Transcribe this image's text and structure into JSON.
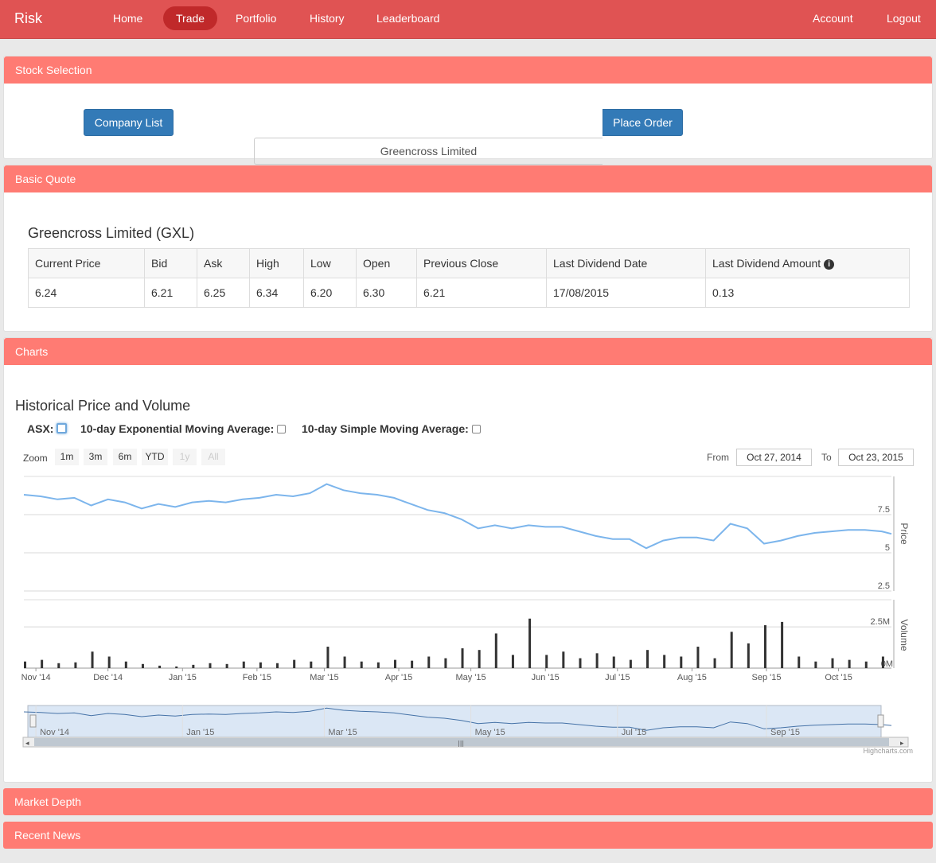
{
  "nav": {
    "brand": "Risk",
    "links": [
      "Home",
      "Trade",
      "Portfolio",
      "History",
      "Leaderboard"
    ],
    "right": [
      "Account",
      "Logout"
    ]
  },
  "stock_selection": {
    "heading": "Stock Selection",
    "company_list_label": "Company List",
    "company_value": "Greencross Limited",
    "place_order_label": "Place Order"
  },
  "basic_quote": {
    "heading": "Basic Quote",
    "title": "Greencross Limited (GXL)",
    "headers": [
      "Current Price",
      "Bid",
      "Ask",
      "High",
      "Low",
      "Open",
      "Previous Close",
      "Last Dividend Date",
      "Last Dividend Amount"
    ],
    "values": [
      "6.24",
      "6.21",
      "6.25",
      "6.34",
      "6.20",
      "6.30",
      "6.21",
      "17/08/2015",
      "0.13"
    ]
  },
  "charts": {
    "heading": "Charts",
    "title": "Historical Price and Volume",
    "options": [
      "ASX:",
      "10-day Exponential Moving Average:",
      "10-day Simple Moving Average:"
    ],
    "zoom_label": "Zoom",
    "zoom_buttons": [
      "1m",
      "3m",
      "6m",
      "YTD",
      "1y",
      "All"
    ],
    "from_label": "From",
    "from_value": "Oct 27, 2014",
    "to_label": "To",
    "to_value": "Oct 23, 2015",
    "credit": "Highcharts.com"
  },
  "chart_data": {
    "type": "line",
    "x_ticks": [
      "Nov '14",
      "Dec '14",
      "Jan '15",
      "Feb '15",
      "Mar '15",
      "Apr '15",
      "May '15",
      "Jun '15",
      "Jul '15",
      "Aug '15",
      "Sep '15",
      "Oct '15"
    ],
    "navigator_ticks": [
      "Nov '14",
      "Jan '15",
      "Mar '15",
      "May '15",
      "Jul '15",
      "Sep '15"
    ],
    "price_axis": {
      "label": "Price",
      "ticks": [
        "7.5",
        "5",
        "2.5"
      ],
      "ylim": [
        2.5,
        10
      ]
    },
    "volume_axis": {
      "label": "Volume",
      "ticks": [
        "2.5M",
        "0M"
      ],
      "ylim": [
        0,
        4000000
      ]
    },
    "price_series": [
      [
        "2014-10-27",
        8.8
      ],
      [
        "2014-11-03",
        8.7
      ],
      [
        "2014-11-10",
        8.5
      ],
      [
        "2014-11-17",
        8.6
      ],
      [
        "2014-11-24",
        8.1
      ],
      [
        "2014-12-01",
        8.5
      ],
      [
        "2014-12-08",
        8.3
      ],
      [
        "2014-12-15",
        7.9
      ],
      [
        "2014-12-22",
        8.2
      ],
      [
        "2014-12-29",
        8.0
      ],
      [
        "2015-01-05",
        8.3
      ],
      [
        "2015-01-12",
        8.4
      ],
      [
        "2015-01-19",
        8.3
      ],
      [
        "2015-01-26",
        8.5
      ],
      [
        "2015-02-02",
        8.6
      ],
      [
        "2015-02-09",
        8.8
      ],
      [
        "2015-02-16",
        8.7
      ],
      [
        "2015-02-23",
        8.9
      ],
      [
        "2015-03-02",
        9.5
      ],
      [
        "2015-03-09",
        9.1
      ],
      [
        "2015-03-16",
        8.9
      ],
      [
        "2015-03-23",
        8.8
      ],
      [
        "2015-03-30",
        8.6
      ],
      [
        "2015-04-06",
        8.2
      ],
      [
        "2015-04-13",
        7.8
      ],
      [
        "2015-04-20",
        7.6
      ],
      [
        "2015-04-27",
        7.2
      ],
      [
        "2015-05-04",
        6.6
      ],
      [
        "2015-05-11",
        6.8
      ],
      [
        "2015-05-18",
        6.6
      ],
      [
        "2015-05-25",
        6.8
      ],
      [
        "2015-06-01",
        6.7
      ],
      [
        "2015-06-08",
        6.7
      ],
      [
        "2015-06-15",
        6.4
      ],
      [
        "2015-06-22",
        6.1
      ],
      [
        "2015-06-29",
        5.9
      ],
      [
        "2015-07-06",
        5.9
      ],
      [
        "2015-07-13",
        5.3
      ],
      [
        "2015-07-20",
        5.8
      ],
      [
        "2015-07-27",
        6.0
      ],
      [
        "2015-08-03",
        6.0
      ],
      [
        "2015-08-10",
        5.8
      ],
      [
        "2015-08-17",
        6.9
      ],
      [
        "2015-08-24",
        6.6
      ],
      [
        "2015-08-31",
        5.6
      ],
      [
        "2015-09-07",
        5.8
      ],
      [
        "2015-09-14",
        6.1
      ],
      [
        "2015-09-21",
        6.3
      ],
      [
        "2015-09-28",
        6.4
      ],
      [
        "2015-10-05",
        6.5
      ],
      [
        "2015-10-12",
        6.5
      ],
      [
        "2015-10-19",
        6.4
      ],
      [
        "2015-10-23",
        6.24
      ]
    ],
    "volume_series": [
      [
        "2014-10-27",
        400000
      ],
      [
        "2014-11-03",
        500000
      ],
      [
        "2014-11-10",
        300000
      ],
      [
        "2014-11-17",
        350000
      ],
      [
        "2014-11-24",
        1000000
      ],
      [
        "2014-12-01",
        700000
      ],
      [
        "2014-12-08",
        400000
      ],
      [
        "2014-12-15",
        250000
      ],
      [
        "2014-12-22",
        150000
      ],
      [
        "2014-12-29",
        100000
      ],
      [
        "2015-01-05",
        200000
      ],
      [
        "2015-01-12",
        300000
      ],
      [
        "2015-01-19",
        250000
      ],
      [
        "2015-01-26",
        400000
      ],
      [
        "2015-02-02",
        350000
      ],
      [
        "2015-02-09",
        300000
      ],
      [
        "2015-02-16",
        500000
      ],
      [
        "2015-02-23",
        400000
      ],
      [
        "2015-03-02",
        1300000
      ],
      [
        "2015-03-09",
        700000
      ],
      [
        "2015-03-16",
        400000
      ],
      [
        "2015-03-23",
        350000
      ],
      [
        "2015-03-30",
        500000
      ],
      [
        "2015-04-06",
        450000
      ],
      [
        "2015-04-13",
        700000
      ],
      [
        "2015-04-20",
        600000
      ],
      [
        "2015-04-27",
        1200000
      ],
      [
        "2015-05-04",
        1100000
      ],
      [
        "2015-05-11",
        2100000
      ],
      [
        "2015-05-18",
        800000
      ],
      [
        "2015-05-25",
        3000000
      ],
      [
        "2015-06-01",
        800000
      ],
      [
        "2015-06-08",
        1000000
      ],
      [
        "2015-06-15",
        600000
      ],
      [
        "2015-06-22",
        900000
      ],
      [
        "2015-06-29",
        700000
      ],
      [
        "2015-07-06",
        500000
      ],
      [
        "2015-07-13",
        1100000
      ],
      [
        "2015-07-20",
        800000
      ],
      [
        "2015-07-27",
        700000
      ],
      [
        "2015-08-03",
        1300000
      ],
      [
        "2015-08-10",
        600000
      ],
      [
        "2015-08-17",
        2200000
      ],
      [
        "2015-08-24",
        1500000
      ],
      [
        "2015-08-31",
        2600000
      ],
      [
        "2015-09-07",
        2800000
      ],
      [
        "2015-09-14",
        700000
      ],
      [
        "2015-09-21",
        400000
      ],
      [
        "2015-09-28",
        600000
      ],
      [
        "2015-10-05",
        500000
      ],
      [
        "2015-10-12",
        400000
      ],
      [
        "2015-10-19",
        700000
      ]
    ]
  },
  "market_depth": {
    "heading": "Market Depth"
  },
  "recent_news": {
    "heading": "Recent News"
  },
  "colors": {
    "nav": "#e05353",
    "panel_heading": "#ff7b73",
    "button": "#337ab7",
    "price_line": "#7cb5ec",
    "navigator_fill": "#dbe7f5"
  }
}
